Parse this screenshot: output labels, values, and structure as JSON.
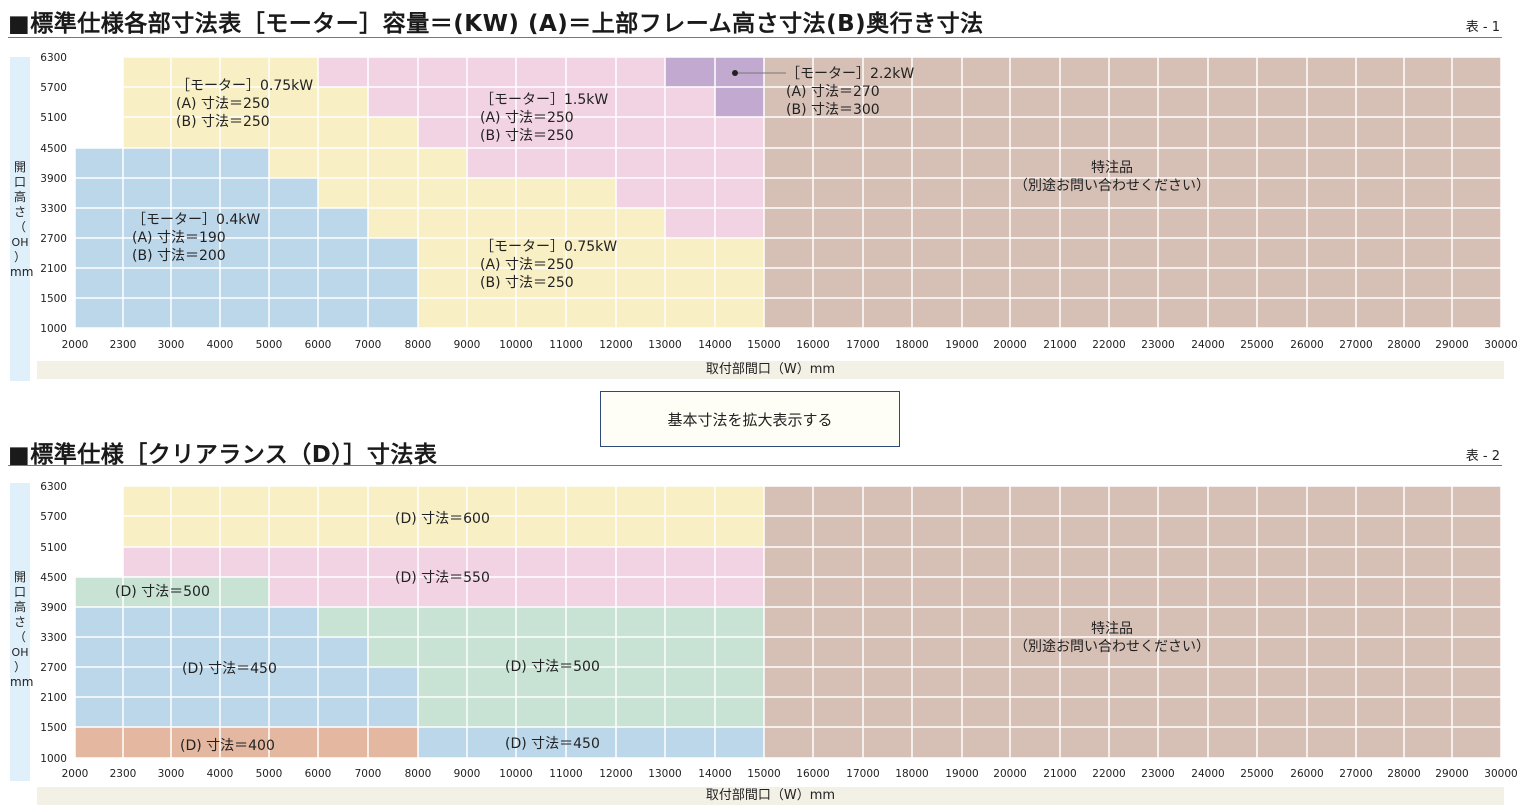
{
  "colors": {
    "yellow": "#f8efc4",
    "pink": "#f2d3e3",
    "purple": "#c2a9d0",
    "blue": "#bdd7ea",
    "green": "#c8e2d4",
    "orange": "#e4b7a0",
    "brown": "#d6c0b6",
    "cellGap": "#ffffff"
  },
  "axis_labels": {
    "x_ticks": [
      "2000",
      "2300",
      "3000",
      "4000",
      "5000",
      "6000",
      "7000",
      "8000",
      "9000",
      "10000",
      "11000",
      "12000",
      "13000",
      "14000",
      "15000",
      "16000",
      "17000",
      "18000",
      "19000",
      "20000",
      "21000",
      "22000",
      "23000",
      "24000",
      "25000",
      "26000",
      "27000",
      "28000",
      "29000",
      "30000"
    ],
    "y_ticks": [
      "1000",
      "1500",
      "2100",
      "2700",
      "3300",
      "3900",
      "4500",
      "5100",
      "5700",
      "6300"
    ]
  },
  "table1": {
    "title": "■標準仕様各部寸法表［モーター］容量＝(KW) (A)＝上部フレーム高さ寸法(B)奥行き寸法",
    "table_no": "表 - 1",
    "y_axis_label": [
      "開",
      "口",
      "高",
      "さ",
      "（",
      "OH",
      "）",
      "mm"
    ],
    "x_axis_label": "取付部間口（W）mm",
    "region_labels": [
      {
        "lines": [
          "［モーター］0.75kW",
          "(A) 寸法＝250",
          "(B) 寸法＝250"
        ]
      },
      {
        "lines": [
          "［モーター］1.5kW",
          "(A) 寸法＝250",
          "(B) 寸法＝250"
        ]
      },
      {
        "lines": [
          "［モーター］2.2kW",
          "(A) 寸法＝270",
          "(B) 寸法＝300"
        ]
      },
      {
        "lines": [
          "特注品",
          "（別途お問い合わせください）"
        ]
      },
      {
        "lines": [
          "［モーター］0.4kW",
          "(A) 寸法＝190",
          "(B) 寸法＝200"
        ]
      },
      {
        "lines": [
          "［モーター］0.75kW",
          "(A) 寸法＝250",
          "(B) 寸法＝250"
        ]
      }
    ]
  },
  "zoom_button": {
    "label": "基本寸法を拡大表示する"
  },
  "table2": {
    "title": "■標準仕様［クリアランス（D）］寸法表",
    "table_no": "表 - 2",
    "y_axis_label": [
      "開",
      "口",
      "高",
      "さ",
      "（",
      "OH",
      "）",
      "mm"
    ],
    "x_axis_label": "取付部間口（W）mm",
    "region_labels": [
      {
        "lines": [
          "(D) 寸法＝600"
        ]
      },
      {
        "lines": [
          "(D) 寸法＝550"
        ]
      },
      {
        "lines": [
          "(D) 寸法＝500"
        ]
      },
      {
        "lines": [
          "特注品",
          "（別途お問い合わせください）"
        ]
      },
      {
        "lines": [
          "(D) 寸法＝450"
        ]
      },
      {
        "lines": [
          "(D) 寸法＝500"
        ]
      },
      {
        "lines": [
          "(D) 寸法＝400"
        ]
      },
      {
        "lines": [
          "(D) 寸法＝450"
        ]
      }
    ]
  }
}
